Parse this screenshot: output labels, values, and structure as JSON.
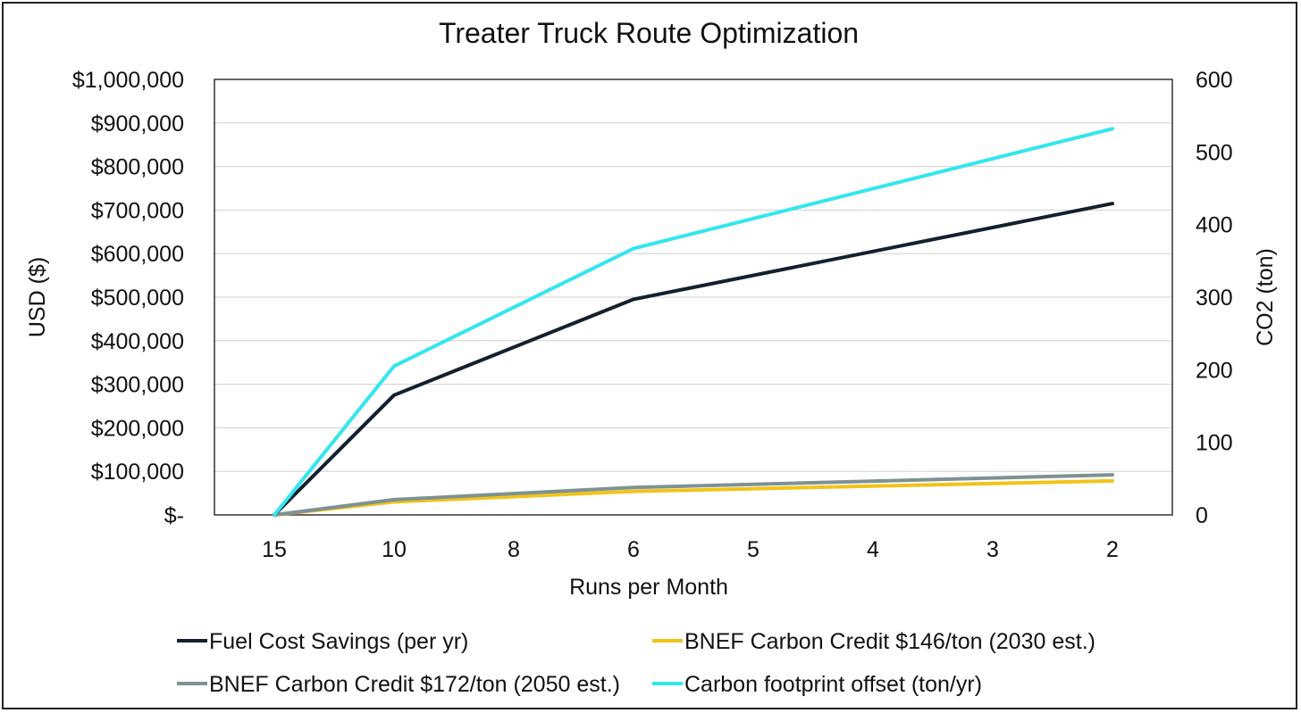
{
  "chart_data": {
    "type": "line",
    "title": "Treater Truck Route Optimization",
    "xlabel": "Runs per Month",
    "ylabel": "USD ($)",
    "y2label": "CO2 (ton)",
    "categories": [
      "15",
      "10",
      "8",
      "6",
      "5",
      "4",
      "3",
      "2"
    ],
    "x_positions": [
      15,
      10,
      6,
      2
    ],
    "ylim": [
      0,
      1000000
    ],
    "y2lim": [
      0,
      600
    ],
    "yticks": [
      "$1,000,000",
      "$900,000",
      "$800,000",
      "$700,000",
      "$600,000",
      "$500,000",
      "$400,000",
      "$300,000",
      "$200,000",
      "$100,000",
      "$-"
    ],
    "y2ticks": [
      "600",
      "500",
      "400",
      "300",
      "200",
      "100",
      "0"
    ],
    "grid": true,
    "legend_position": "bottom",
    "series": [
      {
        "name": "Fuel Cost Savings (per yr)",
        "axis": "left",
        "color": "#14202E",
        "x": [
          "15",
          "10",
          "6",
          "2"
        ],
        "values": [
          0,
          275000,
          495000,
          715000
        ]
      },
      {
        "name": "BNEF Carbon Credit $146/ton (2030 est.)",
        "axis": "left",
        "color": "#F2C318",
        "x": [
          "15",
          "10",
          "6",
          "2"
        ],
        "values": [
          0,
          30000,
          54000,
          78000
        ]
      },
      {
        "name": "BNEF Carbon Credit $172/ton (2050 est.)",
        "axis": "left",
        "color": "#7E9293",
        "x": [
          "15",
          "10",
          "6",
          "2"
        ],
        "values": [
          0,
          35000,
          63000,
          92000
        ]
      },
      {
        "name": "Carbon footprint offset (ton/yr)",
        "axis": "right",
        "color": "#33E6F0",
        "x": [
          "15",
          "10",
          "6",
          "2"
        ],
        "values": [
          0,
          205,
          367,
          532
        ]
      }
    ]
  }
}
